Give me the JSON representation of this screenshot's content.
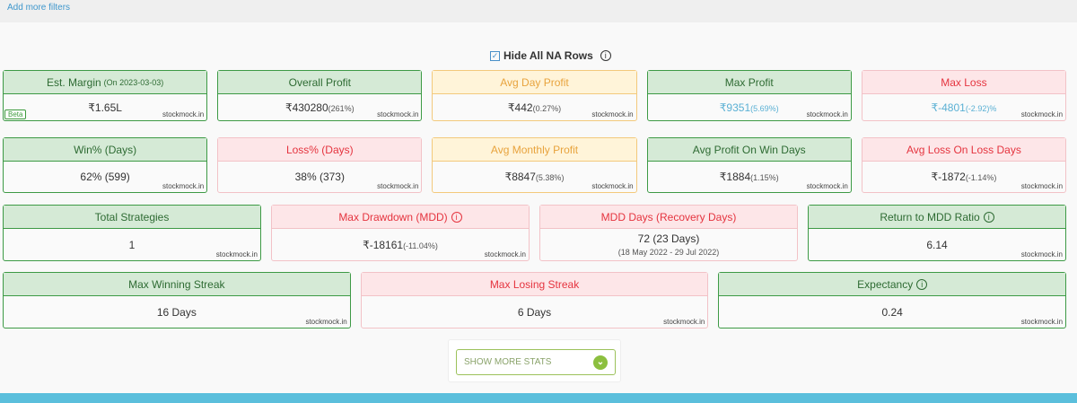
{
  "filters": {
    "add_more": "Add more filters"
  },
  "hide_na": {
    "label": "Hide All NA Rows",
    "checked": true
  },
  "watermark": "stockmock.in",
  "cards": [
    {
      "title": "Est. Margin",
      "title_small": "(On 2023-03-03)",
      "value": "₹1.65L",
      "pct": "",
      "badge": "Beta",
      "theme": "green"
    },
    {
      "title": "Overall Profit",
      "value": "₹430280",
      "pct": "(261%)",
      "theme": "green"
    },
    {
      "title": "Avg Day Profit",
      "value": "₹442",
      "pct": "(0.27%)",
      "theme": "yellow"
    },
    {
      "title": "Max Profit",
      "value": "₹9351",
      "pct": "(5.69%)",
      "theme": "green"
    },
    {
      "title": "Max Loss",
      "value": "₹-4801",
      "pct": "(-2.92)%",
      "theme": "red"
    },
    {
      "title": "Win% (Days)",
      "value": "62% (599)",
      "theme": "green"
    },
    {
      "title": "Loss% (Days)",
      "value": "38% (373)",
      "theme": "red"
    },
    {
      "title": "Avg Monthly Profit",
      "value": "₹8847",
      "pct": "(5.38%)",
      "theme": "yellow"
    },
    {
      "title": "Avg Profit On Win Days",
      "value": "₹1884",
      "pct": "(1.15%)",
      "theme": "green"
    },
    {
      "title": "Avg Loss On Loss Days",
      "value": "₹-1872",
      "pct": "(-1.14%)",
      "theme": "red"
    },
    {
      "title": "Total Strategies",
      "value": "1",
      "theme": "green"
    },
    {
      "title": "Max Drawdown (MDD)",
      "value": "₹-18161",
      "pct": "(-11.04%)",
      "theme": "red"
    },
    {
      "title": "MDD Days (Recovery Days)",
      "value": "72 (23 Days)",
      "sub": "(18 May 2022 - 29 Jul 2022)",
      "theme": "red"
    },
    {
      "title": "Return to MDD Ratio",
      "value": "6.14",
      "theme": "green"
    },
    {
      "title": "Max Winning Streak",
      "value": "16 Days",
      "theme": "green"
    },
    {
      "title": "Max Losing Streak",
      "value": "6 Days",
      "theme": "red"
    },
    {
      "title": "Expectancy",
      "value": "0.24",
      "theme": "green"
    }
  ],
  "show_more": {
    "label": "SHOW MORE STATS",
    "icon": "chevron-down-circle-icon"
  },
  "colors": {
    "green": "#3d9a45",
    "red": "#e5343f",
    "yellow": "#e8a33d",
    "accent_blue": "#5bbfdc"
  }
}
